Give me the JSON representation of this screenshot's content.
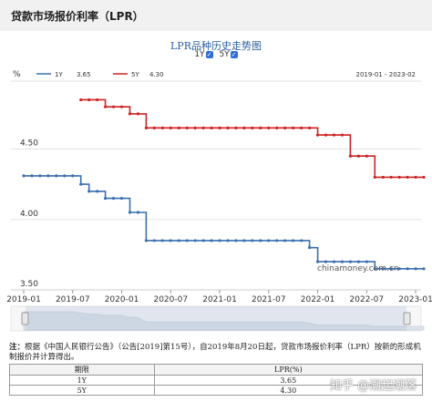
{
  "page": {
    "title": "贷款市场报价利率（LPR）"
  },
  "chart_header": {
    "title": "LPR品种历史走势图",
    "toggle_1y": "1Y",
    "toggle_5y": "5Y"
  },
  "chart_data": {
    "type": "line",
    "title": "LPR品种历史走势图",
    "ylabel": "%",
    "ylim": [
      3.5,
      4.95
    ],
    "yticks": [
      "3.50",
      "4.00",
      "4.50"
    ],
    "xtick_labels": [
      "2019-01",
      "2019-07",
      "2020-01",
      "2020-07",
      "2021-01",
      "2021-07",
      "2022-01",
      "2022-07",
      "2023-01"
    ],
    "legend": [
      {
        "name": "1Y",
        "value": "3.65",
        "color": "#3a6fb0"
      },
      {
        "name": "5Y",
        "value": "4.30",
        "color": "#cc2222"
      }
    ],
    "date_range": "2019-01 - 2023-02",
    "series": [
      {
        "name": "1Y",
        "color": "#3a6fb0",
        "x": [
          "2019-01",
          "2019-02",
          "2019-03",
          "2019-04",
          "2019-05",
          "2019-06",
          "2019-07",
          "2019-08",
          "2019-09",
          "2019-10",
          "2019-11",
          "2019-12",
          "2020-01",
          "2020-02",
          "2020-03",
          "2020-04",
          "2020-05",
          "2020-06",
          "2020-07",
          "2020-08",
          "2020-09",
          "2020-10",
          "2020-11",
          "2020-12",
          "2021-01",
          "2021-02",
          "2021-03",
          "2021-04",
          "2021-05",
          "2021-06",
          "2021-07",
          "2021-08",
          "2021-09",
          "2021-10",
          "2021-11",
          "2021-12",
          "2022-01",
          "2022-02",
          "2022-03",
          "2022-04",
          "2022-05",
          "2022-06",
          "2022-07",
          "2022-08",
          "2022-09",
          "2022-10",
          "2022-11",
          "2022-12",
          "2023-01",
          "2023-02"
        ],
        "values": [
          4.31,
          4.31,
          4.31,
          4.31,
          4.31,
          4.31,
          4.31,
          4.25,
          4.2,
          4.2,
          4.15,
          4.15,
          4.15,
          4.05,
          4.05,
          3.85,
          3.85,
          3.85,
          3.85,
          3.85,
          3.85,
          3.85,
          3.85,
          3.85,
          3.85,
          3.85,
          3.85,
          3.85,
          3.85,
          3.85,
          3.85,
          3.85,
          3.85,
          3.85,
          3.85,
          3.8,
          3.7,
          3.7,
          3.7,
          3.7,
          3.7,
          3.7,
          3.7,
          3.65,
          3.65,
          3.65,
          3.65,
          3.65,
          3.65,
          3.65
        ]
      },
      {
        "name": "5Y",
        "color": "#cc2222",
        "x": [
          "2019-08",
          "2019-09",
          "2019-10",
          "2019-11",
          "2019-12",
          "2020-01",
          "2020-02",
          "2020-03",
          "2020-04",
          "2020-05",
          "2020-06",
          "2020-07",
          "2020-08",
          "2020-09",
          "2020-10",
          "2020-11",
          "2020-12",
          "2021-01",
          "2021-02",
          "2021-03",
          "2021-04",
          "2021-05",
          "2021-06",
          "2021-07",
          "2021-08",
          "2021-09",
          "2021-10",
          "2021-11",
          "2021-12",
          "2022-01",
          "2022-02",
          "2022-03",
          "2022-04",
          "2022-05",
          "2022-06",
          "2022-07",
          "2022-08",
          "2022-09",
          "2022-10",
          "2022-11",
          "2022-12",
          "2023-01",
          "2023-02"
        ],
        "values": [
          4.85,
          4.85,
          4.85,
          4.8,
          4.8,
          4.8,
          4.75,
          4.75,
          4.65,
          4.65,
          4.65,
          4.65,
          4.65,
          4.65,
          4.65,
          4.65,
          4.65,
          4.65,
          4.65,
          4.65,
          4.65,
          4.65,
          4.65,
          4.65,
          4.65,
          4.65,
          4.65,
          4.65,
          4.65,
          4.6,
          4.6,
          4.6,
          4.6,
          4.45,
          4.45,
          4.45,
          4.3,
          4.3,
          4.3,
          4.3,
          4.3,
          4.3,
          4.3
        ]
      }
    ],
    "grid": true,
    "watermark": "chinamoney.com.cn"
  },
  "navigator": {
    "series": "1Y"
  },
  "note": {
    "prefix": "注：",
    "text": "根据《中国人民银行公告》（公告[2019]第15号），自2019年8月20日起，贷款市场报价利率（LPR）按新的形成机制报价并计算得出。"
  },
  "rates_table": {
    "headers": [
      "期限",
      "LPR(%)"
    ],
    "rows": [
      [
        "1Y",
        "3.65"
      ],
      [
        "5Y",
        "4.30"
      ]
    ]
  },
  "overlay": {
    "source_watermark": "知乎 @潮起潮落"
  }
}
